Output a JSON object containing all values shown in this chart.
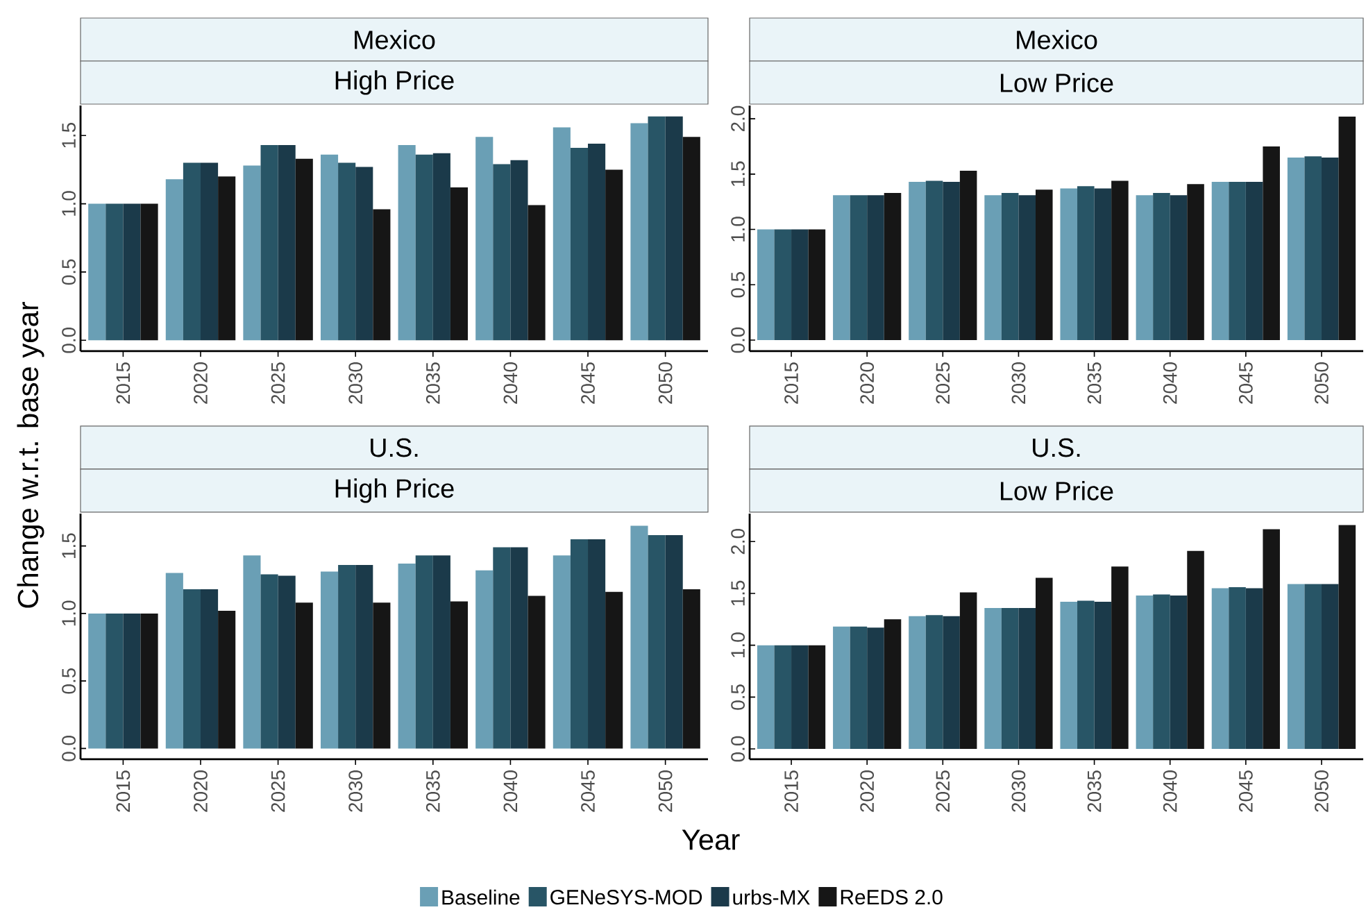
{
  "chart_data": [
    {
      "type": "bar",
      "title": "Mexico",
      "subtitle": "High Price",
      "ylabel": "Change w.r.t. base year",
      "legend": "bottom",
      "categories": [
        "2015",
        "2020",
        "2025",
        "2030",
        "2035",
        "2040",
        "2045",
        "2050"
      ],
      "ylim": [
        -0.08,
        1.72
      ],
      "yticks": [
        {
          "value": 0,
          "label": "0.0"
        },
        {
          "value": 0.5,
          "label": "0.5"
        },
        {
          "value": 1,
          "label": "1.0"
        },
        {
          "value": 1.5,
          "label": "1.5"
        }
      ],
      "series": [
        {
          "name": "Baseline",
          "color": "#6a9fb5",
          "values": [
            1.0,
            1.18,
            1.28,
            1.36,
            1.43,
            1.49,
            1.56,
            1.59
          ]
        },
        {
          "name": "GENeSYS-MOD",
          "color": "#285566",
          "values": [
            1.0,
            1.3,
            1.43,
            1.3,
            1.36,
            1.29,
            1.41,
            1.64
          ]
        },
        {
          "name": "urbs-MX",
          "color": "#1b3a4a",
          "values": [
            1.0,
            1.3,
            1.43,
            1.27,
            1.37,
            1.32,
            1.44,
            1.64
          ]
        },
        {
          "name": "ReEDS 2.0",
          "color": "#161616",
          "values": [
            1.0,
            1.2,
            1.33,
            0.96,
            1.12,
            0.99,
            1.25,
            1.49
          ]
        }
      ]
    },
    {
      "type": "bar",
      "title": "Mexico",
      "subtitle": "Low Price",
      "categories": [
        "2015",
        "2020",
        "2025",
        "2030",
        "2035",
        "2040",
        "2045",
        "2050"
      ],
      "ylim": [
        -0.1,
        2.12
      ],
      "yticks": [
        {
          "value": 0,
          "label": "0.0"
        },
        {
          "value": 0.5,
          "label": "0.5"
        },
        {
          "value": 1,
          "label": "1.0"
        },
        {
          "value": 1.5,
          "label": "1.5"
        },
        {
          "value": 2,
          "label": "2.0"
        }
      ],
      "series": [
        {
          "color": "#6a9fb5",
          "values": [
            1.0,
            1.31,
            1.43,
            1.31,
            1.37,
            1.31,
            1.43,
            1.65
          ]
        },
        {
          "color": "#285566",
          "values": [
            1.0,
            1.31,
            1.44,
            1.33,
            1.39,
            1.33,
            1.43,
            1.66
          ]
        },
        {
          "color": "#1b3a4a",
          "values": [
            1.0,
            1.31,
            1.43,
            1.31,
            1.37,
            1.31,
            1.43,
            1.65
          ]
        },
        {
          "color": "#161616",
          "values": [
            1.0,
            1.33,
            1.53,
            1.36,
            1.44,
            1.41,
            1.75,
            2.02
          ]
        }
      ]
    },
    {
      "type": "bar",
      "title": "U.S.",
      "subtitle": "High Price",
      "xlabel": "Year",
      "categories": [
        "2015",
        "2020",
        "2025",
        "2030",
        "2035",
        "2040",
        "2045",
        "2050"
      ],
      "ylim": [
        -0.08,
        1.74
      ],
      "yticks": [
        {
          "value": 0,
          "label": "0.0"
        },
        {
          "value": 0.5,
          "label": "0.5"
        },
        {
          "value": 1,
          "label": "1.0"
        },
        {
          "value": 1.5,
          "label": "1.5"
        }
      ],
      "series": [
        {
          "color": "#6a9fb5",
          "values": [
            1.0,
            1.3,
            1.43,
            1.31,
            1.37,
            1.32,
            1.43,
            1.65
          ]
        },
        {
          "color": "#285566",
          "values": [
            1.0,
            1.18,
            1.29,
            1.36,
            1.43,
            1.49,
            1.55,
            1.58
          ]
        },
        {
          "color": "#1b3a4a",
          "values": [
            1.0,
            1.18,
            1.28,
            1.36,
            1.43,
            1.49,
            1.55,
            1.58
          ]
        },
        {
          "color": "#161616",
          "values": [
            1.0,
            1.02,
            1.08,
            1.08,
            1.09,
            1.13,
            1.16,
            1.18
          ]
        }
      ]
    },
    {
      "type": "bar",
      "title": "U.S.",
      "subtitle": "Low Price",
      "categories": [
        "2015",
        "2020",
        "2025",
        "2030",
        "2035",
        "2040",
        "2045",
        "2050"
      ],
      "ylim": [
        -0.1,
        2.27
      ],
      "yticks": [
        {
          "value": 0,
          "label": "0.0"
        },
        {
          "value": 0.5,
          "label": "0.5"
        },
        {
          "value": 1,
          "label": "1.0"
        },
        {
          "value": 1.5,
          "label": "1.5"
        },
        {
          "value": 2,
          "label": "2.0"
        }
      ],
      "series": [
        {
          "color": "#6a9fb5",
          "values": [
            1.0,
            1.18,
            1.28,
            1.36,
            1.42,
            1.48,
            1.55,
            1.59
          ]
        },
        {
          "color": "#285566",
          "values": [
            1.0,
            1.18,
            1.29,
            1.36,
            1.43,
            1.49,
            1.56,
            1.59
          ]
        },
        {
          "color": "#1b3a4a",
          "values": [
            1.0,
            1.17,
            1.28,
            1.36,
            1.42,
            1.48,
            1.55,
            1.59
          ]
        },
        {
          "color": "#161616",
          "values": [
            1.0,
            1.25,
            1.51,
            1.65,
            1.76,
            1.91,
            2.12,
            2.16
          ]
        }
      ]
    }
  ]
}
